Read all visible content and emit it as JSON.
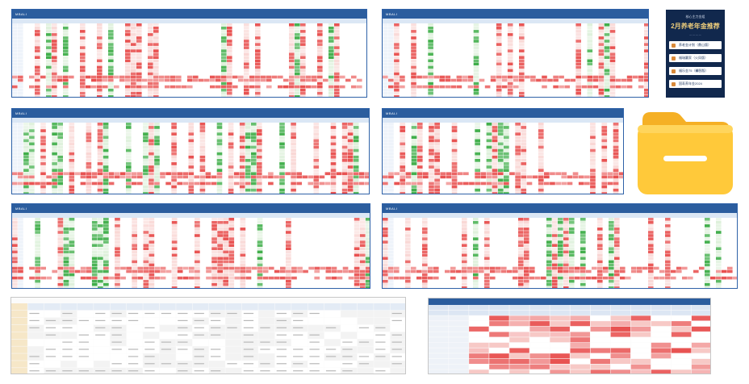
{
  "thumbnails": [
    {
      "id": "thumb-1",
      "logo": "MBALI"
    },
    {
      "id": "thumb-2",
      "logo": "MBALI"
    },
    {
      "id": "thumb-3",
      "logo": "MBALI"
    },
    {
      "id": "thumb-4",
      "logo": "MBALI"
    },
    {
      "id": "thumb-5",
      "logo": "MBALI"
    },
    {
      "id": "thumb-6",
      "logo": "MBALI"
    }
  ],
  "poster": {
    "tag": "核心主力金组",
    "title": "2月养老年金推荐",
    "items": [
      {
        "label": "养老金计划（鼎山版）"
      },
      {
        "label": "福瑞赢家（火凤版）"
      },
      {
        "label": "福乐金75（馨颐版）"
      },
      {
        "label": "国寿养年金2024"
      }
    ]
  },
  "folder": {
    "icon": "folder-icon",
    "colors": {
      "body": "#ffc93a",
      "tab": "#f5b025",
      "bar": "#ffffff"
    }
  },
  "colors": {
    "header_blue": "#2b5d9e",
    "red_strong": "#e8504f",
    "red_light": "#f7c9c6",
    "green_strong": "#3fae49",
    "green_light": "#cfeacb",
    "poster_bg": "#11284d"
  }
}
